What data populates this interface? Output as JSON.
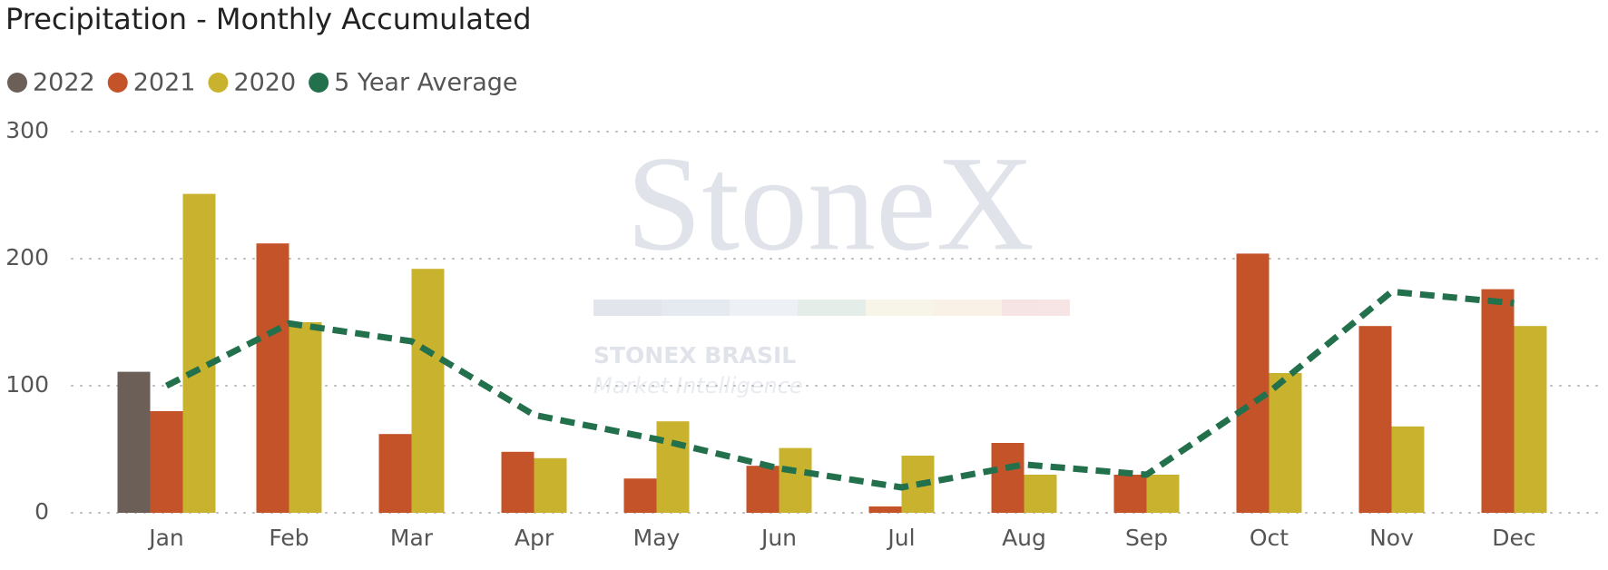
{
  "chart_data": {
    "type": "bar",
    "title": "Precipitation - Monthly Accumulated",
    "categories": [
      "Jan",
      "Feb",
      "Mar",
      "Apr",
      "May",
      "Jun",
      "Jul",
      "Aug",
      "Sep",
      "Oct",
      "Nov",
      "Dec"
    ],
    "series": [
      {
        "name": "2022",
        "color": "#6b5f58",
        "type": "bar",
        "values": [
          111,
          null,
          null,
          null,
          null,
          null,
          null,
          null,
          null,
          null,
          null,
          null
        ]
      },
      {
        "name": "2021",
        "color": "#c5532a",
        "type": "bar",
        "values": [
          80,
          212,
          62,
          48,
          27,
          37,
          5,
          55,
          30,
          204,
          147,
          176
        ]
      },
      {
        "name": "2020",
        "color": "#c9b32e",
        "type": "bar",
        "values": [
          251,
          150,
          192,
          43,
          72,
          51,
          45,
          30,
          30,
          110,
          68,
          147
        ]
      },
      {
        "name": "5 Year Average",
        "color": "#23704c",
        "type": "line",
        "values": [
          100,
          149,
          135,
          77,
          58,
          35,
          20,
          38,
          30,
          95,
          174,
          165
        ]
      }
    ],
    "ylim": [
      0,
      300
    ],
    "yticks": [
      0,
      100,
      200,
      300
    ],
    "grid": true,
    "watermark": {
      "logo": "StoneX",
      "company": "STONEX BRASIL",
      "tagline": "Market Intelligence"
    }
  }
}
